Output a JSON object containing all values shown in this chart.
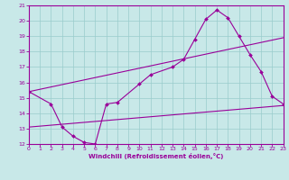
{
  "title": "",
  "xlabel": "Windchill (Refroidissement éolien,°C)",
  "xlim": [
    0,
    23
  ],
  "ylim": [
    12,
    21
  ],
  "xticks": [
    0,
    1,
    2,
    3,
    4,
    5,
    6,
    7,
    8,
    9,
    10,
    11,
    12,
    13,
    14,
    15,
    16,
    17,
    18,
    19,
    20,
    21,
    22,
    23
  ],
  "yticks": [
    12,
    13,
    14,
    15,
    16,
    17,
    18,
    19,
    20,
    21
  ],
  "bg_color": "#c8e8e8",
  "line_color": "#990099",
  "grid_color": "#99cccc",
  "curve1_x": [
    0,
    2,
    3,
    4,
    5,
    6,
    7,
    8,
    10,
    11,
    13,
    14,
    15,
    16,
    17,
    18,
    19,
    20,
    21,
    22,
    23
  ],
  "curve1_y": [
    15.4,
    14.6,
    13.1,
    12.5,
    12.1,
    12.0,
    14.6,
    14.7,
    15.9,
    16.5,
    17.0,
    17.5,
    18.8,
    20.1,
    20.7,
    20.2,
    19.0,
    17.8,
    16.7,
    15.1,
    14.6
  ],
  "curve2_x": [
    0,
    23
  ],
  "curve2_y": [
    15.4,
    18.9
  ],
  "curve3_x": [
    0,
    23
  ],
  "curve3_y": [
    13.1,
    14.5
  ]
}
